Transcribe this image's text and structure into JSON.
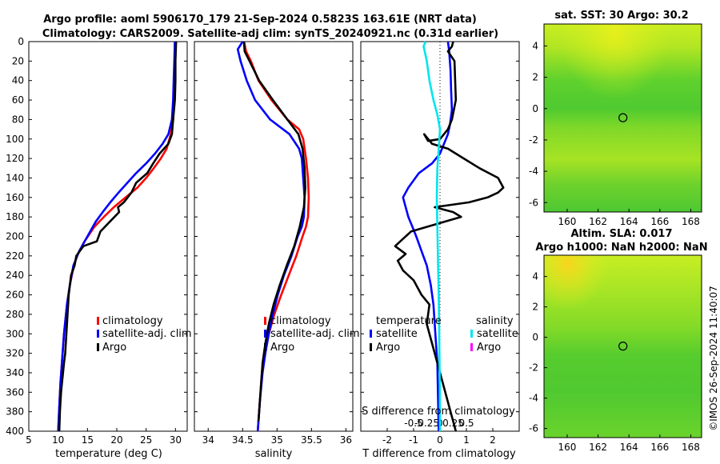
{
  "figure": {
    "title_line1": "Argo profile: aoml 5906170_179 21-Sep-2024 0.5823S 163.61E (NRT data)",
    "title_line2": "Climatology: CARS2009. Satellite-adj clim: synTS_20240921.nc (0.31d earlier)",
    "side_text": "©IMOS 26-Sep-2024 11:40:07"
  },
  "colors": {
    "climatology": "#ff0000",
    "satellite": "#0000ff",
    "argo": "#000000",
    "satellite_salinity": "#00e5ee",
    "argo_salinity": "#ff00ff"
  },
  "chart_data": [
    {
      "id": "temperature",
      "type": "line",
      "xlabel": "temperature (deg C)",
      "ylabel": "",
      "xlim": [
        5,
        32
      ],
      "ylim": [
        0,
        400
      ],
      "xticks": [
        5,
        10,
        15,
        20,
        25,
        30
      ],
      "yticks": [
        0,
        20,
        40,
        60,
        80,
        100,
        120,
        140,
        160,
        180,
        200,
        220,
        240,
        260,
        280,
        300,
        320,
        340,
        360,
        380,
        400
      ],
      "legend": [
        "climatology",
        "satellite-adj. clim",
        "Argo"
      ],
      "series": [
        {
          "name": "climatology",
          "x": [
            29.9,
            29.9,
            29.8,
            29.7,
            29.6,
            29.2,
            28.5,
            27.5,
            26.3,
            25,
            23.5,
            21.5,
            19.5,
            17.8,
            16.2,
            14.5,
            13.2,
            12.5,
            12,
            11.5,
            11,
            10.7,
            10.4,
            10.2,
            10
          ],
          "y": [
            0,
            20,
            40,
            60,
            80,
            95,
            110,
            120,
            130,
            140,
            150,
            160,
            170,
            180,
            190,
            205,
            220,
            235,
            250,
            270,
            300,
            325,
            350,
            375,
            400
          ]
        },
        {
          "name": "satellite-adj. clim",
          "x": [
            29.9,
            29.8,
            29.7,
            29.6,
            29.4,
            28.8,
            27.8,
            26.5,
            25,
            23.3,
            21.8,
            20.3,
            18.9,
            17.6,
            16.4,
            15,
            13.6,
            12.6,
            12,
            11.5,
            11,
            10.7,
            10.4,
            10.2,
            10
          ],
          "y": [
            0,
            20,
            40,
            60,
            80,
            95,
            105,
            115,
            125,
            135,
            145,
            155,
            165,
            175,
            185,
            200,
            215,
            230,
            250,
            270,
            300,
            325,
            350,
            375,
            400
          ]
        },
        {
          "name": "Argo",
          "x": [
            30.1,
            30,
            30,
            29.9,
            29.6,
            29.4,
            28.8,
            27.3,
            26.2,
            25.2,
            23.3,
            22.5,
            21.2,
            20.2,
            20.4,
            18.8,
            17.2,
            16.6,
            14.3,
            13.1,
            12.8,
            12.2,
            11.8,
            11.5,
            11.2,
            11,
            10.5,
            10.3,
            10.2
          ],
          "y": [
            0,
            20,
            40,
            60,
            80,
            95,
            105,
            115,
            125,
            135,
            145,
            155,
            165,
            170,
            175,
            185,
            195,
            205,
            210,
            220,
            230,
            240,
            260,
            290,
            320,
            330,
            360,
            380,
            400
          ]
        }
      ]
    },
    {
      "id": "salinity",
      "type": "line",
      "xlabel": "salinity",
      "ylabel": "",
      "xlim": [
        33.8,
        36.1
      ],
      "ylim": [
        0,
        400
      ],
      "xticks": [
        34,
        34.5,
        35,
        35.5,
        36
      ],
      "xticklabels": [
        "34",
        "34.5",
        "35",
        "35.5",
        "36"
      ],
      "legend": [
        "climatology",
        "satellite-adj. clim",
        "Argo"
      ],
      "series": [
        {
          "name": "climatology",
          "x": [
            34.52,
            34.55,
            34.62,
            34.73,
            34.92,
            35.15,
            35.32,
            35.38,
            35.42,
            35.45,
            35.46,
            35.45,
            35.42,
            35.37,
            35.28,
            35.17,
            35.06,
            34.96,
            34.88,
            34.82,
            34.78,
            34.75,
            34.72
          ],
          "y": [
            0,
            10,
            20,
            40,
            60,
            80,
            90,
            100,
            120,
            140,
            160,
            180,
            190,
            200,
            220,
            240,
            260,
            280,
            300,
            320,
            340,
            370,
            400
          ]
        },
        {
          "name": "satellite-adj. clim",
          "x": [
            34.5,
            34.43,
            34.47,
            34.56,
            34.68,
            34.9,
            35.18,
            35.32,
            35.36,
            35.38,
            35.4,
            35.39,
            35.36,
            35.3,
            35.21,
            35.1,
            35.01,
            34.94,
            34.88,
            34.83,
            34.79,
            34.75,
            34.72
          ],
          "y": [
            0,
            8,
            20,
            40,
            60,
            80,
            95,
            110,
            120,
            140,
            160,
            180,
            190,
            200,
            220,
            240,
            260,
            280,
            300,
            320,
            340,
            370,
            400
          ]
        },
        {
          "name": "Argo",
          "x": [
            34.52,
            34.53,
            34.6,
            34.74,
            34.94,
            35.15,
            35.31,
            35.37,
            35.4,
            35.41,
            35.39,
            35.33,
            35.25,
            35.14,
            35.04,
            34.95,
            34.88,
            34.83,
            34.79,
            34.76,
            34.73
          ],
          "y": [
            0,
            10,
            20,
            40,
            60,
            80,
            95,
            110,
            130,
            150,
            170,
            190,
            210,
            230,
            250,
            270,
            290,
            310,
            330,
            360,
            390
          ]
        }
      ]
    },
    {
      "id": "difference",
      "type": "line",
      "xlabel": "T difference from climatology",
      "xlabel_top": "S difference from climatology",
      "xlim": [
        -3,
        3
      ],
      "ylim": [
        0,
        400
      ],
      "xticks": [
        -2,
        -1,
        0,
        1,
        2
      ],
      "xticklabels": [
        "-2",
        "-1",
        "0",
        "1",
        "2"
      ],
      "s_xticks": [
        -1,
        -0.5,
        0,
        0.5,
        1
      ],
      "s_xticklabels": [
        "-0.5",
        "-0.25",
        "0",
        "0.25",
        "0.5"
      ],
      "legend_titles": [
        "temperature",
        "salinity"
      ],
      "legend_t": [
        "satellite",
        "Argo"
      ],
      "legend_s": [
        "satellite",
        "Argo"
      ],
      "series": [
        {
          "name": "T satellite",
          "x": [
            0.3,
            0.35,
            0.4,
            0.42,
            0.45,
            0.38,
            0.3,
            0.15,
            0,
            -0.3,
            -0.8,
            -1.2,
            -1.4,
            -1.3,
            -1.2,
            -1.05,
            -0.9,
            -0.7,
            -0.5,
            -0.35,
            -0.25,
            -0.2,
            -0.15,
            -0.1,
            -0.08,
            -0.05
          ],
          "y": [
            0,
            10,
            30,
            50,
            70,
            85,
            95,
            105,
            115,
            125,
            135,
            150,
            160,
            170,
            180,
            190,
            200,
            215,
            230,
            250,
            270,
            290,
            310,
            330,
            360,
            400
          ]
        },
        {
          "name": "T Argo",
          "x": [
            0.5,
            0.45,
            0.3,
            0.55,
            0.6,
            0.45,
            0.3,
            0,
            -0.45,
            -0.6,
            -0.3,
            0.3,
            0.9,
            1.5,
            2.2,
            2.4,
            2.2,
            1.8,
            1.1,
            -0.2,
            0.5,
            0.8,
            -0.1,
            -1.1,
            -1.5,
            -1.7,
            -1.3,
            -1.6,
            -1.4,
            -1,
            -0.7,
            -0.4,
            -0.5,
            -0.3,
            -0.1,
            0.1,
            0.3,
            0.5,
            0.6
          ],
          "y": [
            0,
            5,
            10,
            20,
            60,
            80,
            90,
            100,
            102,
            95,
            105,
            110,
            120,
            130,
            140,
            150,
            155,
            160,
            165,
            170,
            175,
            180,
            187,
            195,
            205,
            210,
            218,
            225,
            235,
            245,
            260,
            270,
            290,
            310,
            330,
            350,
            370,
            390,
            400
          ]
        },
        {
          "name": "S satellite",
          "x": [
            -0.55,
            -0.62,
            -0.58,
            -0.5,
            -0.4,
            -0.25,
            -0.1,
            0,
            -0.05,
            -0.1,
            -0.12,
            -0.1,
            -0.08,
            -0.05,
            -0.03,
            -0.01,
            0
          ],
          "y": [
            0,
            5,
            10,
            20,
            40,
            60,
            75,
            90,
            110,
            130,
            160,
            190,
            220,
            260,
            300,
            350,
            400
          ]
        }
      ]
    }
  ],
  "maps": [
    {
      "id": "sst-map",
      "title": "sat. SST: 30 Argo: 30.2",
      "xticks": [
        160,
        162,
        164,
        166,
        168
      ],
      "yticks": [
        4,
        2,
        0,
        -2,
        -4,
        -6
      ],
      "xlim": [
        158.5,
        168.7
      ],
      "ylim": [
        -6.6,
        5.4
      ],
      "marker": {
        "lon": 163.61,
        "lat": -0.58
      }
    },
    {
      "id": "sla-map",
      "title1": "Altim. SLA: 0.017",
      "title2": "Argo h1000: NaN h2000: NaN",
      "xticks": [
        160,
        162,
        164,
        166,
        168
      ],
      "yticks": [
        4,
        2,
        0,
        -2,
        -4,
        -6
      ],
      "xlim": [
        158.5,
        168.7
      ],
      "ylim": [
        -6.6,
        5.4
      ],
      "marker": {
        "lon": 163.61,
        "lat": -0.58
      }
    }
  ]
}
